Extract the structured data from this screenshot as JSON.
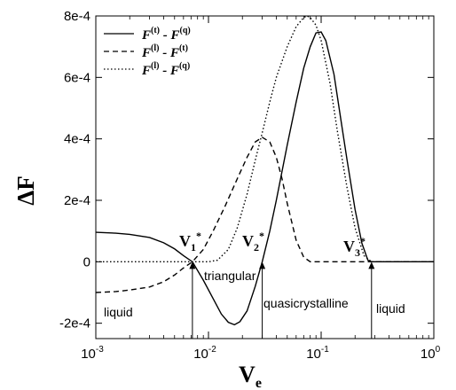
{
  "chart_data": {
    "type": "line",
    "xlabel_main": "V",
    "xlabel_sub": "e",
    "ylabel": "ΔF",
    "xscale": "log",
    "xlim": [
      0.001,
      1.0
    ],
    "ylim": [
      -0.00025,
      0.0008
    ],
    "x_ticks": [
      {
        "value": 0.001,
        "base": "10",
        "exp": "-3"
      },
      {
        "value": 0.01,
        "base": "10",
        "exp": "-2"
      },
      {
        "value": 0.1,
        "base": "10",
        "exp": "-1"
      },
      {
        "value": 1.0,
        "base": "10",
        "exp": "0"
      }
    ],
    "y_ticks": [
      {
        "value": -0.0002,
        "label": "-2e-4"
      },
      {
        "value": 0,
        "label": "0"
      },
      {
        "value": 0.0002,
        "label": "2e-4"
      },
      {
        "value": 0.0004,
        "label": "4e-4"
      },
      {
        "value": 0.0006,
        "label": "6e-4"
      },
      {
        "value": 0.0008,
        "label": "8e-4"
      }
    ],
    "series": [
      {
        "name_base": "F",
        "name_sup1": "(t)",
        "name_mid": " - F",
        "name_sup2": "(q)",
        "dash": "solid",
        "points": [
          [
            0.001,
            9.6e-05
          ],
          [
            0.0015,
            9.3e-05
          ],
          [
            0.002,
            8.9e-05
          ],
          [
            0.003,
            7.9e-05
          ],
          [
            0.004,
            6.2e-05
          ],
          [
            0.005,
            4.2e-05
          ],
          [
            0.006,
            2e-05
          ],
          [
            0.0072,
            0
          ],
          [
            0.009,
            -6e-05
          ],
          [
            0.011,
            -0.00012
          ],
          [
            0.013,
            -0.00017
          ],
          [
            0.015,
            -0.000197
          ],
          [
            0.017,
            -0.000205
          ],
          [
            0.019,
            -0.000195
          ],
          [
            0.022,
            -0.00016
          ],
          [
            0.026,
            -8e-05
          ],
          [
            0.03,
            0
          ],
          [
            0.035,
            0.0001
          ],
          [
            0.04,
            0.0002
          ],
          [
            0.05,
            0.00038
          ],
          [
            0.06,
            0.00052
          ],
          [
            0.07,
            0.00063
          ],
          [
            0.08,
            0.0007
          ],
          [
            0.09,
            0.000745
          ],
          [
            0.1,
            0.000748
          ],
          [
            0.11,
            0.00072
          ],
          [
            0.13,
            0.00061
          ],
          [
            0.15,
            0.00046
          ],
          [
            0.17,
            0.00033
          ],
          [
            0.2,
            0.00017
          ],
          [
            0.23,
            6e-05
          ],
          [
            0.26,
            5e-06
          ],
          [
            0.28,
            0
          ],
          [
            0.4,
            0
          ],
          [
            1.0,
            0
          ]
        ]
      },
      {
        "name_base": "F",
        "name_sup1": "(l)",
        "name_mid": " - F",
        "name_sup2": "(t)",
        "dash": "dashed",
        "points": [
          [
            0.001,
            -0.0001
          ],
          [
            0.0015,
            -9.7e-05
          ],
          [
            0.002,
            -9.2e-05
          ],
          [
            0.003,
            -8.2e-05
          ],
          [
            0.004,
            -6.5e-05
          ],
          [
            0.005,
            -4.3e-05
          ],
          [
            0.006,
            -2e-05
          ],
          [
            0.0072,
            0
          ],
          [
            0.009,
            4e-05
          ],
          [
            0.011,
            0.0001
          ],
          [
            0.014,
            0.00018
          ],
          [
            0.018,
            0.00027
          ],
          [
            0.022,
            0.00034
          ],
          [
            0.026,
            0.00039
          ],
          [
            0.03,
            0.000405
          ],
          [
            0.035,
            0.00039
          ],
          [
            0.04,
            0.00034
          ],
          [
            0.045,
            0.00027
          ],
          [
            0.05,
            0.00019
          ],
          [
            0.06,
            7e-05
          ],
          [
            0.07,
            1.5e-05
          ],
          [
            0.08,
            0
          ],
          [
            0.1,
            0
          ],
          [
            1.0,
            0
          ]
        ]
      },
      {
        "name_base": "F",
        "name_sup1": "(l)",
        "name_mid": " - F",
        "name_sup2": "(q)",
        "dash": "dotted",
        "points": [
          [
            0.001,
            0
          ],
          [
            0.0075,
            0
          ],
          [
            0.01,
            0
          ],
          [
            0.012,
            5e-06
          ],
          [
            0.015,
            4e-05
          ],
          [
            0.018,
            0.00011
          ],
          [
            0.022,
            0.00022
          ],
          [
            0.026,
            0.00033
          ],
          [
            0.03,
            0.00042
          ],
          [
            0.035,
            0.00052
          ],
          [
            0.04,
            0.0006
          ],
          [
            0.05,
            0.0007
          ],
          [
            0.06,
            0.000765
          ],
          [
            0.07,
            0.000795
          ],
          [
            0.075,
            0.0008
          ],
          [
            0.08,
            0.000795
          ],
          [
            0.09,
            0.00077
          ],
          [
            0.1,
            0.00072
          ],
          [
            0.12,
            0.00058
          ],
          [
            0.14,
            0.00042
          ],
          [
            0.17,
            0.00024
          ],
          [
            0.2,
            0.00011
          ],
          [
            0.24,
            2e-05
          ],
          [
            0.28,
            0
          ],
          [
            1.0,
            0
          ]
        ]
      }
    ],
    "transitions": [
      {
        "main": "V",
        "sub": "1",
        "sup": "*",
        "x": 0.0072
      },
      {
        "main": "V",
        "sub": "2",
        "sup": "*",
        "x": 0.03
      },
      {
        "main": "V",
        "sub": "3",
        "sup": "*",
        "x": 0.28
      }
    ],
    "regions": [
      "liquid",
      "triangular",
      "quasicrystalline",
      "liquid"
    ],
    "legend_position": "top-left"
  }
}
